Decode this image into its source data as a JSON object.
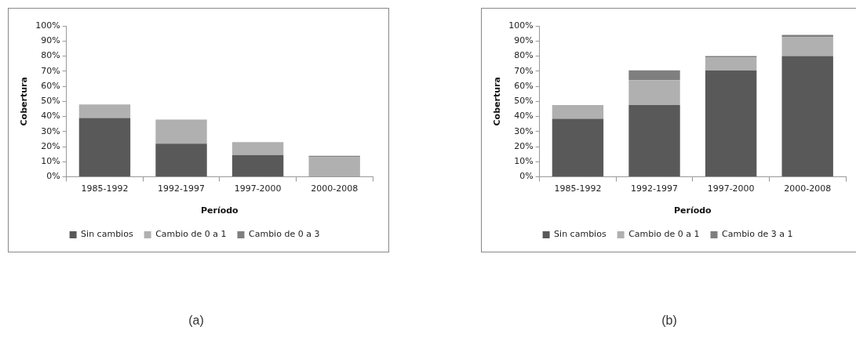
{
  "chart_data": [
    {
      "type": "bar",
      "stacked": true,
      "xlabel": "Período",
      "ylabel": "Cobertura",
      "categories": [
        "1985-1992",
        "1992-1997",
        "1997-2000",
        "2000-2008"
      ],
      "series": [
        {
          "name": "Sin cambios",
          "color": "#595959",
          "values": [
            39,
            22,
            14.5,
            0
          ]
        },
        {
          "name": "Cambio de 0 a 1",
          "color": "#b0b0b0",
          "values": [
            9,
            16,
            8.5,
            13
          ]
        },
        {
          "name": "Cambio de 0 a 3",
          "color": "#7f7f7f",
          "values": [
            0,
            0,
            0,
            1
          ]
        }
      ],
      "ylim": [
        0,
        100
      ],
      "yticks": [
        {
          "value": 0,
          "label": "0%"
        },
        {
          "value": 10,
          "label": "10%"
        },
        {
          "value": 20,
          "label": "20%"
        },
        {
          "value": 30,
          "label": "30%"
        },
        {
          "value": 40,
          "label": "40%"
        },
        {
          "value": 50,
          "label": "50%"
        },
        {
          "value": 60,
          "label": "60%"
        },
        {
          "value": 70,
          "label": "70%"
        },
        {
          "value": 80,
          "label": "80%"
        },
        {
          "value": 90,
          "label": "90%"
        },
        {
          "value": 100,
          "label": "100%"
        }
      ],
      "grid": false,
      "legend": "bottom",
      "annotations": [
        "(a)"
      ]
    },
    {
      "type": "bar",
      "stacked": true,
      "xlabel": "Período",
      "ylabel": "Cobertura",
      "categories": [
        "1985-1992",
        "1992-1997",
        "1997-2000",
        "2000-2008"
      ],
      "series": [
        {
          "name": "Sin cambios",
          "color": "#595959",
          "values": [
            38.5,
            47.5,
            70.5,
            80
          ]
        },
        {
          "name": "Cambio de 0 a 1",
          "color": "#b0b0b0",
          "values": [
            9,
            16.5,
            8.5,
            12.5
          ]
        },
        {
          "name": "Cambio de 3 a 1",
          "color": "#7f7f7f",
          "values": [
            0,
            6.5,
            1,
            1.5
          ]
        }
      ],
      "ylim": [
        0,
        100
      ],
      "yticks": [
        {
          "value": 0,
          "label": "0%"
        },
        {
          "value": 10,
          "label": "10%"
        },
        {
          "value": 20,
          "label": "20%"
        },
        {
          "value": 30,
          "label": "30%"
        },
        {
          "value": 40,
          "label": "40%"
        },
        {
          "value": 50,
          "label": "50%"
        },
        {
          "value": 60,
          "label": "60%"
        },
        {
          "value": 70,
          "label": "70%"
        },
        {
          "value": 80,
          "label": "80%"
        },
        {
          "value": 90,
          "label": "90%"
        },
        {
          "value": 100,
          "label": "100%"
        }
      ],
      "grid": false,
      "legend": "bottom",
      "annotations": [
        "(b)"
      ]
    }
  ]
}
